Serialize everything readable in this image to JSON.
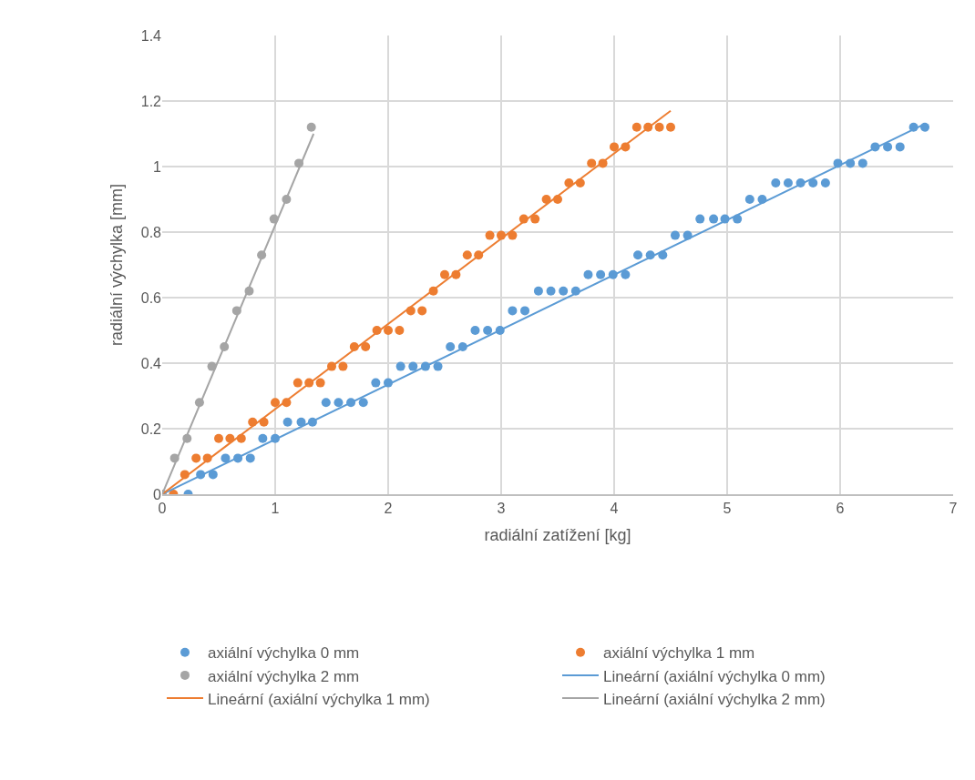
{
  "chart_data": {
    "type": "scatter",
    "xlabel": "radiální zatížení [kg]",
    "ylabel": "radiální výchylka [mm]",
    "xlim": [
      0,
      7
    ],
    "xticks": [
      0,
      1,
      2,
      3,
      4,
      5,
      6,
      7
    ],
    "ylim": [
      0,
      1.4
    ],
    "yticks": [
      0,
      0.2,
      0.4,
      0.6,
      0.8,
      1,
      1.2,
      1.4
    ],
    "grid": true,
    "legend": "bottom",
    "marker": "circle",
    "series": [
      {
        "name": "axiální výchylka 0 mm",
        "color": "#5b9bd5",
        "x": [
          0.23,
          0.34,
          0.45,
          0.56,
          0.67,
          0.78,
          0.89,
          1.0,
          1.11,
          1.23,
          1.33,
          1.45,
          1.56,
          1.67,
          1.78,
          1.89,
          2.0,
          2.11,
          2.22,
          2.33,
          2.44,
          2.55,
          2.66,
          2.77,
          2.88,
          2.99,
          3.1,
          3.21,
          3.33,
          3.44,
          3.55,
          3.66,
          3.77,
          3.88,
          3.99,
          4.1,
          4.21,
          4.32,
          4.43,
          4.54,
          4.65,
          4.76,
          4.88,
          4.98,
          5.09,
          5.2,
          5.31,
          5.43,
          5.54,
          5.65,
          5.76,
          5.87,
          5.98,
          6.09,
          6.2,
          6.31,
          6.42,
          6.53,
          6.65,
          6.75
        ],
        "values": [
          0,
          0.06,
          0.06,
          0.11,
          0.11,
          0.11,
          0.17,
          0.17,
          0.22,
          0.22,
          0.22,
          0.28,
          0.28,
          0.28,
          0.28,
          0.34,
          0.34,
          0.39,
          0.39,
          0.39,
          0.39,
          0.45,
          0.45,
          0.5,
          0.5,
          0.5,
          0.56,
          0.56,
          0.62,
          0.62,
          0.62,
          0.62,
          0.67,
          0.67,
          0.67,
          0.67,
          0.73,
          0.73,
          0.73,
          0.79,
          0.79,
          0.84,
          0.84,
          0.84,
          0.84,
          0.9,
          0.9,
          0.95,
          0.95,
          0.95,
          0.95,
          0.95,
          1.01,
          1.01,
          1.01,
          1.06,
          1.06,
          1.06,
          1.12,
          1.12
        ]
      },
      {
        "name": "axiální výchylka 1 mm",
        "color": "#ed7d31",
        "x": [
          0.1,
          0.2,
          0.3,
          0.4,
          0.5,
          0.6,
          0.7,
          0.8,
          0.9,
          1.0,
          1.1,
          1.2,
          1.3,
          1.4,
          1.5,
          1.6,
          1.7,
          1.8,
          1.9,
          2.0,
          2.1,
          2.2,
          2.3,
          2.4,
          2.5,
          2.6,
          2.7,
          2.8,
          2.9,
          3.0,
          3.1,
          3.2,
          3.3,
          3.4,
          3.5,
          3.6,
          3.7,
          3.8,
          3.9,
          4.0,
          4.1,
          4.2,
          4.3,
          4.4,
          4.5
        ],
        "values": [
          0,
          0.06,
          0.11,
          0.11,
          0.17,
          0.17,
          0.17,
          0.22,
          0.22,
          0.28,
          0.28,
          0.34,
          0.34,
          0.34,
          0.39,
          0.39,
          0.45,
          0.45,
          0.5,
          0.5,
          0.5,
          0.56,
          0.56,
          0.62,
          0.67,
          0.67,
          0.73,
          0.73,
          0.79,
          0.79,
          0.79,
          0.84,
          0.84,
          0.9,
          0.9,
          0.95,
          0.95,
          1.01,
          1.01,
          1.06,
          1.06,
          1.12,
          1.12,
          1.12,
          1.12
        ]
      },
      {
        "name": "axiální výchylka 2 mm",
        "color": "#a5a5a5",
        "x": [
          0,
          0.11,
          0.22,
          0.33,
          0.44,
          0.55,
          0.66,
          0.77,
          0.88,
          0.99,
          1.1,
          1.21,
          1.32
        ],
        "values": [
          0,
          0.11,
          0.17,
          0.28,
          0.39,
          0.45,
          0.56,
          0.62,
          0.73,
          0.84,
          0.9,
          1.01,
          1.12
        ]
      },
      {
        "name": "Lineární (axiální výchylka 0 mm)",
        "type": "line",
        "marker": "none",
        "color": "#5b9bd5",
        "x": [
          0,
          6.75
        ],
        "values": [
          0,
          1.13
        ]
      },
      {
        "name": "Lineární (axiální výchylka 1 mm)",
        "type": "line",
        "marker": "none",
        "color": "#ed7d31",
        "x": [
          0,
          4.5
        ],
        "values": [
          0,
          1.17
        ]
      },
      {
        "name": "Lineární (axiální výchylka 2 mm)",
        "type": "line",
        "marker": "none",
        "color": "#a5a5a5",
        "x": [
          0,
          1.34
        ],
        "values": [
          0,
          1.1
        ]
      }
    ]
  }
}
